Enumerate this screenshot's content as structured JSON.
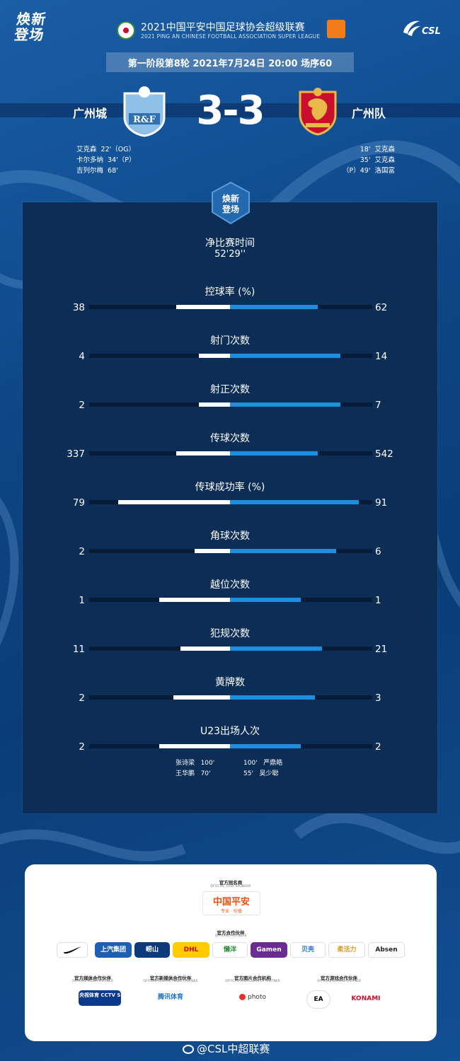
{
  "header": {
    "brand_logo": "焕新\n登场",
    "league_title": "2021中国平安中国足球协会超级联赛",
    "league_subtitle": "2021 PING AN CHINESE FOOTBALL ASSOCIATION SUPER LEAGUE",
    "csl_mark": "CSL",
    "round_info": "第一阶段第8轮  2021年7月24日 20:00 场序60"
  },
  "match": {
    "home": {
      "name": "广州城",
      "crest_text": "R&F",
      "crest_color": "#8fc0e8",
      "scorers": [
        "艾克森  22'（OG）",
        "卡尔多纳  34'（P）",
        "吉列尔梅  68'"
      ]
    },
    "away": {
      "name": "广州队",
      "crest_color": "#c8102e",
      "scorers": [
        "18'  艾克森",
        "35'  艾克森",
        "（P）49'  洛国富"
      ]
    },
    "score": "3-3"
  },
  "panel": {
    "logo": "焕新\n登场",
    "net_time_label": "净比赛时间",
    "net_time_value": "52'29''"
  },
  "stats": [
    {
      "label": "控球率 (%)",
      "home": "38",
      "away": "62",
      "home_frac": 0.38,
      "away_frac": 0.62
    },
    {
      "label": "射门次数",
      "home": "4",
      "away": "14",
      "home_frac": 0.22,
      "away_frac": 0.78
    },
    {
      "label": "射正次数",
      "home": "2",
      "away": "7",
      "home_frac": 0.22,
      "away_frac": 0.78
    },
    {
      "label": "传球次数",
      "home": "337",
      "away": "542",
      "home_frac": 0.38,
      "away_frac": 0.62
    },
    {
      "label": "传球成功率 (%)",
      "home": "79",
      "away": "91",
      "home_frac": 0.79,
      "away_frac": 0.91
    },
    {
      "label": "角球次数",
      "home": "2",
      "away": "6",
      "home_frac": 0.25,
      "away_frac": 0.75
    },
    {
      "label": "越位次数",
      "home": "1",
      "away": "1",
      "home_frac": 0.5,
      "away_frac": 0.5
    },
    {
      "label": "犯规次数",
      "home": "11",
      "away": "21",
      "home_frac": 0.35,
      "away_frac": 0.65
    },
    {
      "label": "黄牌数",
      "home": "2",
      "away": "3",
      "home_frac": 0.4,
      "away_frac": 0.6
    },
    {
      "label": "U23出场人次",
      "home": "2",
      "away": "2",
      "home_frac": 0.5,
      "away_frac": 0.5
    }
  ],
  "u23": {
    "home": [
      "张诗梁   100'",
      "王华鹏   70'"
    ],
    "away": [
      "100'   严鼎皓",
      "55'   吴少聪"
    ]
  },
  "sponsors": {
    "title_sponsor_cap": "官方冠名商",
    "title_sponsor_cap_en": "OFFICIAL TITLE SPONSOR",
    "title_sponsor": "中国平安",
    "title_sponsor_sub": "专业 · 价值",
    "partners_cap": "官方合作伙伴",
    "partners_cap_en": "OFFICIAL PARTNERS",
    "partners": [
      "✓",
      "上汽集团",
      "崂山",
      "DHL",
      "懒洋",
      "Gamen",
      "贝壳",
      "柔活力",
      "Absen"
    ],
    "media_caps": [
      {
        "cn": "官方媒体合作伙伴",
        "en": "OFFICIAL MEDIA PARTNER"
      },
      {
        "cn": "官方新媒体合作伙伴",
        "en": "OFFICIAL DIGITAL MEDIA PARTNER"
      },
      {
        "cn": "官方图片合作机构",
        "en": "OFFICIAL PHOTOGRAPHY PARTNER"
      },
      {
        "cn": "官方游戏合作伙伴",
        "en": "OFFICIAL GAMING PARTNER"
      }
    ],
    "media_logos": [
      "央视体育 CCTV SPORTS",
      "腾讯体育",
      "photo",
      "EA",
      "KONAMI"
    ]
  },
  "footer": {
    "weibo": "@CSL中超联赛"
  },
  "colors": {
    "home_bar": "#ffffff",
    "away_bar": "#1e8ee0",
    "panel": "#0c2d55"
  }
}
